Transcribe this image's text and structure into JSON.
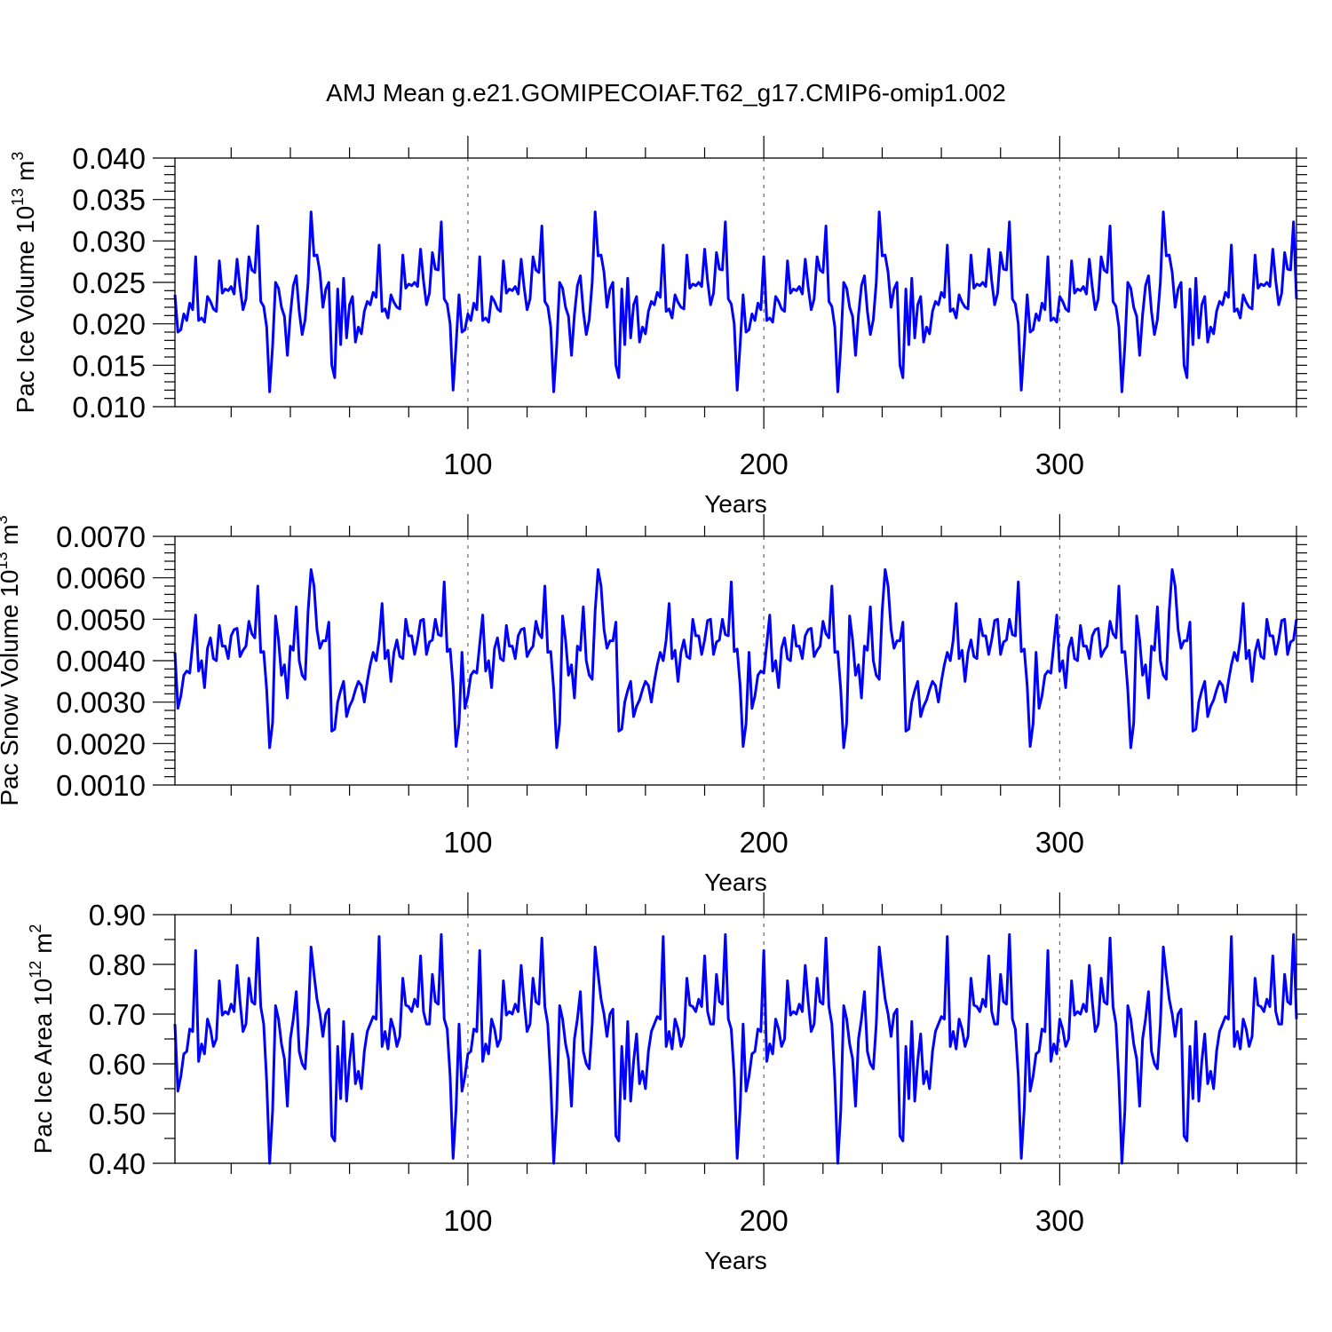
{
  "title": "AMJ Mean g.e21.GOMIPECOIAF.T62_g17.CMIP6-omip1.002",
  "colors": {
    "line": "#0000ff",
    "axes": "#000000",
    "reference": "#666666"
  },
  "chart_data": [
    {
      "type": "line",
      "name": "pac-ice-volume",
      "ylabel": {
        "prefix": "Pac Ice Volume 10",
        "sup1": "13",
        "mid": " m",
        "sup2": "3"
      },
      "xlabel": "Years",
      "xlim": [
        1,
        380
      ],
      "ylim": [
        0.01,
        0.04
      ],
      "yticks": [
        0.01,
        0.015,
        0.02,
        0.025,
        0.03,
        0.035,
        0.04
      ],
      "ytick_labels": [
        "0.010",
        "0.015",
        "0.020",
        "0.025",
        "0.030",
        "0.035",
        "0.040"
      ],
      "xticks": [
        100,
        200,
        300
      ],
      "xtick_labels": [
        "100",
        "200",
        "300"
      ],
      "reference_x": [
        100,
        200,
        300
      ],
      "segment_values": [
        0.0235,
        0.019,
        0.0193,
        0.0212,
        0.0204,
        0.0225,
        0.0217,
        0.0281,
        0.0204,
        0.0207,
        0.0202,
        0.0233,
        0.0227,
        0.0218,
        0.0215,
        0.0276,
        0.0237,
        0.0242,
        0.024,
        0.0245,
        0.0236,
        0.0278,
        0.0244,
        0.0217,
        0.023,
        0.0281,
        0.0265,
        0.0262,
        0.0318,
        0.0227,
        0.0221,
        0.0196,
        0.0118,
        0.0173,
        0.025,
        0.0243,
        0.022,
        0.0209,
        0.0162,
        0.0211,
        0.0246,
        0.0258,
        0.0215,
        0.0187,
        0.0205,
        0.025,
        0.0335,
        0.0282,
        0.0283,
        0.0262,
        0.022,
        0.0242,
        0.025,
        0.015,
        0.0135,
        0.0242,
        0.0175,
        0.0255,
        0.0183,
        0.0223,
        0.0233,
        0.0178,
        0.0196,
        0.0188,
        0.0215,
        0.0227,
        0.0223,
        0.0238,
        0.0232,
        0.0295,
        0.0215,
        0.0218,
        0.0207,
        0.0235,
        0.0226,
        0.022,
        0.0218,
        0.0283,
        0.0243,
        0.0248,
        0.0246,
        0.025,
        0.0245,
        0.029,
        0.0252,
        0.0223,
        0.0237,
        0.0286,
        0.0266,
        0.0265,
        0.0323,
        0.023,
        0.0224,
        0.02,
        0.012,
        0.0175
      ]
    },
    {
      "type": "line",
      "name": "pac-snow-volume",
      "ylabel": {
        "prefix": "Pac Snow Volume 10",
        "sup1": "13",
        "mid": " m",
        "sup2": "3"
      },
      "xlabel": "Years",
      "xlim": [
        1,
        380
      ],
      "ylim": [
        0.001,
        0.007
      ],
      "yticks": [
        0.001,
        0.002,
        0.003,
        0.004,
        0.005,
        0.006,
        0.007
      ],
      "ytick_labels": [
        "0.0010",
        "0.0020",
        "0.0030",
        "0.0040",
        "0.0050",
        "0.0060",
        "0.0070"
      ],
      "xticks": [
        100,
        200,
        300
      ],
      "xtick_labels": [
        "100",
        "200",
        "300"
      ],
      "reference_x": [
        100,
        200,
        300
      ],
      "segment_values": [
        0.0042,
        0.00285,
        0.00315,
        0.00365,
        0.00375,
        0.0037,
        0.0044,
        0.0051,
        0.00375,
        0.004,
        0.00335,
        0.0043,
        0.00455,
        0.00405,
        0.004,
        0.00485,
        0.00435,
        0.00435,
        0.00405,
        0.0046,
        0.00475,
        0.00478,
        0.0041,
        0.00425,
        0.00435,
        0.00495,
        0.00465,
        0.00455,
        0.0058,
        0.0042,
        0.00422,
        0.0033,
        0.0019,
        0.0025,
        0.00508,
        0.0045,
        0.00365,
        0.0039,
        0.0031,
        0.00435,
        0.00425,
        0.0053,
        0.004,
        0.00365,
        0.00355,
        0.0052,
        0.0062,
        0.0058,
        0.00475,
        0.0043,
        0.00448,
        0.00448,
        0.00493,
        0.0023,
        0.00235,
        0.003,
        0.00328,
        0.0035,
        0.00265,
        0.0029,
        0.00305,
        0.0033,
        0.0035,
        0.0034,
        0.003,
        0.0035,
        0.0039,
        0.0042,
        0.004,
        0.0045,
        0.00538,
        0.00405,
        0.00425,
        0.0035,
        0.0042,
        0.0045,
        0.0041,
        0.00405,
        0.005,
        0.0046,
        0.0046,
        0.00415,
        0.0045,
        0.00497,
        0.005,
        0.00415,
        0.00445,
        0.0045,
        0.005,
        0.00463,
        0.0046,
        0.0059,
        0.00422,
        0.00428,
        0.0034,
        0.00193,
        0.00248
      ]
    },
    {
      "type": "line",
      "name": "pac-ice-area",
      "ylabel": {
        "prefix": "Pac Ice Area 10",
        "sup1": "12",
        "mid": " m",
        "sup2": "2"
      },
      "xlabel": "Years",
      "xlim": [
        1,
        380
      ],
      "ylim": [
        0.4,
        0.9
      ],
      "yticks": [
        0.4,
        0.5,
        0.6,
        0.7,
        0.8,
        0.9
      ],
      "ytick_labels": [
        "0.40",
        "0.50",
        "0.60",
        "0.70",
        "0.80",
        "0.90"
      ],
      "xticks": [
        100,
        200,
        300
      ],
      "xtick_labels": [
        "100",
        "200",
        "300"
      ],
      "reference_x": [
        100,
        200,
        300
      ],
      "segment_values": [
        0.68,
        0.545,
        0.575,
        0.62,
        0.625,
        0.67,
        0.665,
        0.828,
        0.605,
        0.64,
        0.62,
        0.69,
        0.67,
        0.635,
        0.65,
        0.767,
        0.698,
        0.705,
        0.7,
        0.72,
        0.705,
        0.798,
        0.725,
        0.665,
        0.68,
        0.772,
        0.725,
        0.72,
        0.853,
        0.715,
        0.68,
        0.565,
        0.4,
        0.505,
        0.717,
        0.69,
        0.64,
        0.61,
        0.515,
        0.65,
        0.69,
        0.745,
        0.625,
        0.6,
        0.59,
        0.68,
        0.835,
        0.78,
        0.73,
        0.7,
        0.655,
        0.7,
        0.71,
        0.455,
        0.445,
        0.635,
        0.53,
        0.685,
        0.525,
        0.605,
        0.66,
        0.56,
        0.585,
        0.55,
        0.625,
        0.665,
        0.68,
        0.695,
        0.69,
        0.856,
        0.635,
        0.665,
        0.63,
        0.69,
        0.67,
        0.635,
        0.655,
        0.772,
        0.718,
        0.715,
        0.705,
        0.73,
        0.715,
        0.817,
        0.705,
        0.68,
        0.68,
        0.78,
        0.725,
        0.72,
        0.86,
        0.69,
        0.67,
        0.575,
        0.41,
        0.51
      ]
    }
  ]
}
